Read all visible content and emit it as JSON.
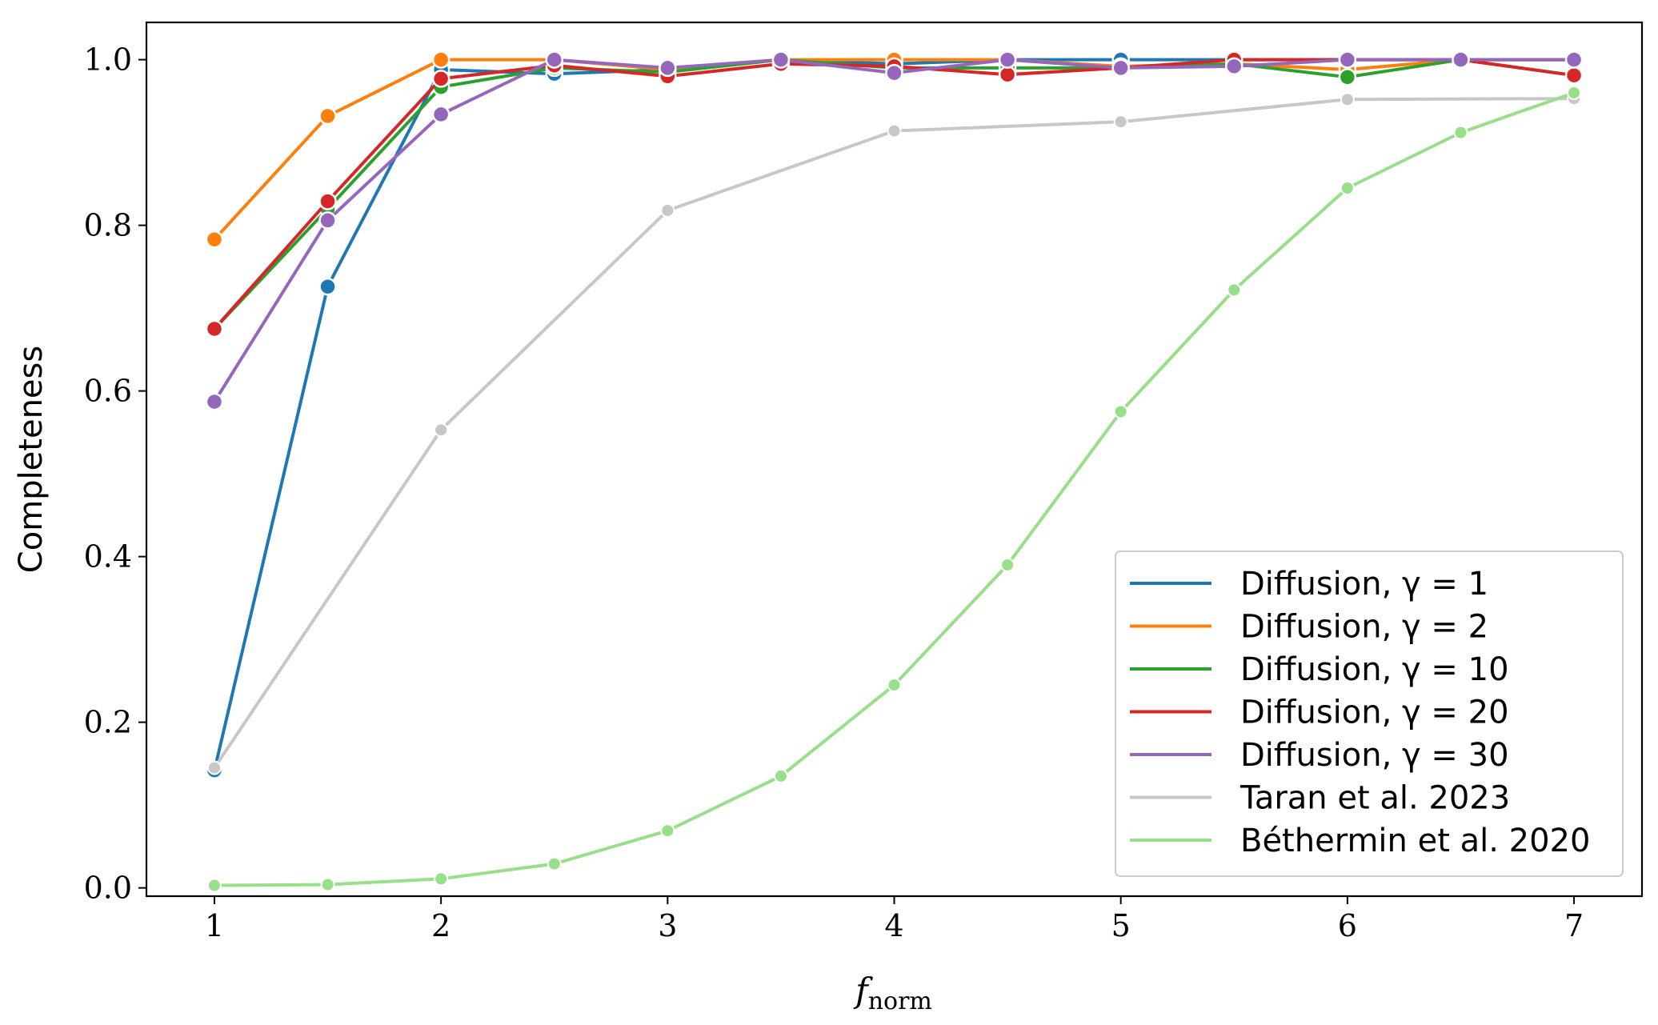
{
  "chart_data": {
    "type": "line",
    "xlabel": "f",
    "xlabel_sub": "norm",
    "ylabel": "Completeness",
    "xlim": [
      0.7,
      7.3
    ],
    "ylim": [
      -0.01,
      1.045
    ],
    "xticks": [
      1,
      2,
      3,
      4,
      5,
      6,
      7
    ],
    "xtick_labels": [
      "1",
      "2",
      "3",
      "4",
      "5",
      "6",
      "7"
    ],
    "yticks": [
      0.0,
      0.2,
      0.4,
      0.6,
      0.8,
      1.0
    ],
    "ytick_labels": [
      "0.0",
      "0.2",
      "0.4",
      "0.6",
      "0.8",
      "1.0"
    ],
    "grid": false,
    "legend_position": "lower-right",
    "x": [
      1,
      1.5,
      2,
      2.5,
      3,
      3.5,
      4,
      4.5,
      5,
      5.5,
      6,
      6.5,
      7
    ],
    "series": [
      {
        "name": "Diffusion, γ = 1",
        "color": "#1f77b4",
        "marker": "large",
        "values": [
          0.142,
          0.726,
          0.988,
          0.983,
          0.988,
          1.0,
          0.995,
          1.0,
          1.0,
          1.0,
          1.0,
          1.0,
          1.0
        ]
      },
      {
        "name": "Diffusion, γ = 2",
        "color": "#ff7f0e",
        "marker": "large",
        "values": [
          0.783,
          0.932,
          1.0,
          1.0,
          0.988,
          1.0,
          1.0,
          1.0,
          0.992,
          0.995,
          0.988,
          1.0,
          1.0
        ]
      },
      {
        "name": "Diffusion, γ = 10",
        "color": "#2ca02c",
        "marker": "large",
        "values": [
          0.675,
          0.82,
          0.967,
          0.99,
          0.985,
          1.0,
          0.99,
          0.99,
          0.99,
          0.995,
          0.979,
          1.0,
          0.981
        ]
      },
      {
        "name": "Diffusion, γ = 20",
        "color": "#d62728",
        "marker": "large",
        "values": [
          0.675,
          0.829,
          0.977,
          0.993,
          0.98,
          0.995,
          0.992,
          0.982,
          0.99,
          1.0,
          1.0,
          1.0,
          0.981
        ]
      },
      {
        "name": "Diffusion, γ = 30",
        "color": "#9467bd",
        "marker": "large",
        "values": [
          0.587,
          0.806,
          0.934,
          1.0,
          0.99,
          1.0,
          0.984,
          1.0,
          0.99,
          0.992,
          1.0,
          1.0,
          1.0
        ]
      },
      {
        "name": "Taran et al. 2023",
        "color": "#c7c7c7",
        "marker": "small",
        "x": [
          1,
          2,
          3,
          4,
          5,
          6,
          7
        ],
        "values": [
          0.145,
          0.553,
          0.818,
          0.914,
          0.925,
          0.952,
          0.953
        ]
      },
      {
        "name": "Béthermin et al. 2020",
        "color": "#98df8a",
        "marker": "small",
        "values": [
          0.003,
          0.004,
          0.011,
          0.029,
          0.069,
          0.135,
          0.245,
          0.39,
          0.575,
          0.722,
          0.845,
          0.912,
          0.96
        ]
      }
    ]
  }
}
